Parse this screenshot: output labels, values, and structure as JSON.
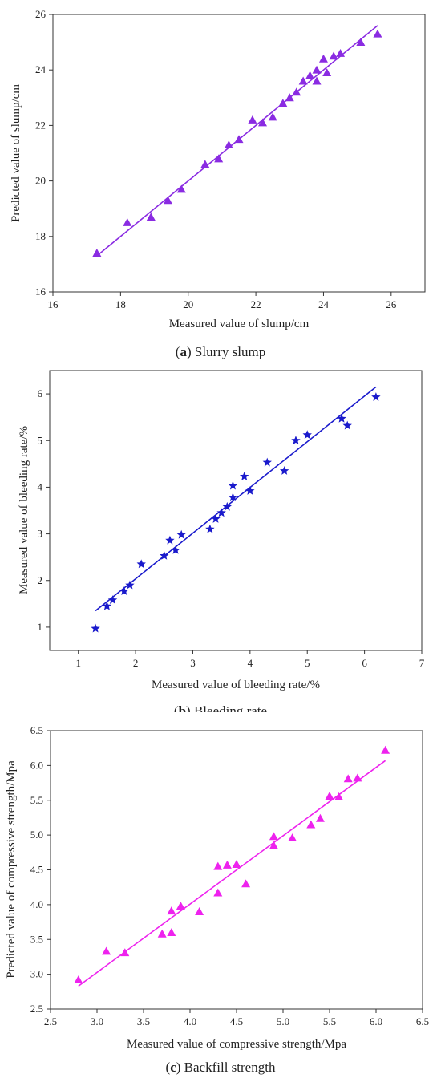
{
  "chart_data": [
    {
      "type": "scatter",
      "caption_letter": "a",
      "caption_text": "Slurry slump",
      "xlabel": "Measured value of slump/cm",
      "ylabel": "Predicted value of slump/cm",
      "xlim": [
        16,
        27
      ],
      "ylim": [
        16,
        26
      ],
      "xticks": [
        16,
        18,
        20,
        22,
        24,
        26
      ],
      "yticks": [
        16,
        18,
        20,
        22,
        24,
        26
      ],
      "marker": "triangle",
      "color": "#8a2be2",
      "points": [
        [
          17.3,
          17.4
        ],
        [
          18.2,
          18.5
        ],
        [
          18.9,
          18.7
        ],
        [
          19.4,
          19.3
        ],
        [
          19.8,
          19.7
        ],
        [
          20.5,
          20.6
        ],
        [
          20.9,
          20.8
        ],
        [
          21.2,
          21.3
        ],
        [
          21.5,
          21.5
        ],
        [
          21.9,
          22.2
        ],
        [
          22.2,
          22.1
        ],
        [
          22.5,
          22.3
        ],
        [
          22.8,
          22.8
        ],
        [
          23.0,
          23.0
        ],
        [
          23.2,
          23.2
        ],
        [
          23.4,
          23.6
        ],
        [
          23.6,
          23.8
        ],
        [
          23.8,
          23.6
        ],
        [
          23.8,
          24.0
        ],
        [
          24.0,
          24.4
        ],
        [
          24.1,
          23.9
        ],
        [
          24.3,
          24.5
        ],
        [
          24.5,
          24.6
        ],
        [
          25.1,
          25.0
        ],
        [
          25.6,
          25.3
        ]
      ],
      "fit_line": [
        [
          17.3,
          17.3
        ],
        [
          25.6,
          25.6
        ]
      ]
    },
    {
      "type": "scatter",
      "caption_letter": "b",
      "caption_text": "Bleeding rate",
      "xlabel": "Measured value of bleeding rate/%",
      "ylabel": "Measured value of bleeding rate/%",
      "xlim": [
        0.5,
        7
      ],
      "ylim": [
        0.5,
        6.5
      ],
      "xticks": [
        1,
        2,
        3,
        4,
        5,
        6,
        7
      ],
      "yticks": [
        1,
        2,
        3,
        4,
        5,
        6
      ],
      "marker": "star",
      "color": "#1a1acc",
      "points": [
        [
          1.3,
          0.97
        ],
        [
          1.5,
          1.45
        ],
        [
          1.6,
          1.58
        ],
        [
          1.8,
          1.77
        ],
        [
          1.9,
          1.9
        ],
        [
          2.1,
          2.35
        ],
        [
          2.5,
          2.53
        ],
        [
          2.6,
          2.86
        ],
        [
          2.7,
          2.65
        ],
        [
          2.8,
          2.98
        ],
        [
          3.3,
          3.1
        ],
        [
          3.4,
          3.32
        ],
        [
          3.5,
          3.45
        ],
        [
          3.6,
          3.58
        ],
        [
          3.7,
          3.78
        ],
        [
          3.7,
          4.03
        ],
        [
          3.9,
          4.23
        ],
        [
          4.0,
          3.92
        ],
        [
          4.3,
          4.53
        ],
        [
          4.6,
          4.35
        ],
        [
          4.8,
          5.0
        ],
        [
          5.0,
          5.12
        ],
        [
          5.6,
          5.47
        ],
        [
          5.7,
          5.32
        ],
        [
          6.2,
          5.93
        ]
      ],
      "fit_line": [
        [
          1.3,
          1.35
        ],
        [
          6.2,
          6.15
        ]
      ]
    },
    {
      "type": "scatter",
      "caption_letter": "c",
      "caption_text": "Backfill strength",
      "xlabel": "Measured value of compressive strength/Mpa",
      "ylabel": "Predicted value of compressive strength/Mpa",
      "xlim": [
        2.5,
        6.5
      ],
      "ylim": [
        2.5,
        6.5
      ],
      "xticks": [
        2.5,
        3.0,
        3.5,
        4.0,
        4.5,
        5.0,
        5.5,
        6.0,
        6.5
      ],
      "yticks": [
        2.5,
        3.0,
        3.5,
        4.0,
        4.5,
        5.0,
        5.5,
        6.0,
        6.5
      ],
      "marker": "triangle",
      "color": "#ee22ee",
      "points": [
        [
          2.8,
          2.92
        ],
        [
          3.1,
          3.33
        ],
        [
          3.3,
          3.31
        ],
        [
          3.7,
          3.58
        ],
        [
          3.8,
          3.6
        ],
        [
          3.8,
          3.91
        ],
        [
          3.9,
          3.98
        ],
        [
          4.1,
          3.9
        ],
        [
          4.3,
          4.17
        ],
        [
          4.3,
          4.55
        ],
        [
          4.4,
          4.57
        ],
        [
          4.5,
          4.58
        ],
        [
          4.6,
          4.3
        ],
        [
          4.9,
          4.85
        ],
        [
          4.9,
          4.98
        ],
        [
          5.1,
          4.96
        ],
        [
          5.3,
          5.15
        ],
        [
          5.4,
          5.24
        ],
        [
          5.5,
          5.56
        ],
        [
          5.6,
          5.55
        ],
        [
          5.7,
          5.81
        ],
        [
          5.8,
          5.82
        ],
        [
          6.1,
          6.22
        ]
      ],
      "fit_line": [
        [
          2.8,
          2.83
        ],
        [
          6.1,
          6.07
        ]
      ]
    }
  ]
}
